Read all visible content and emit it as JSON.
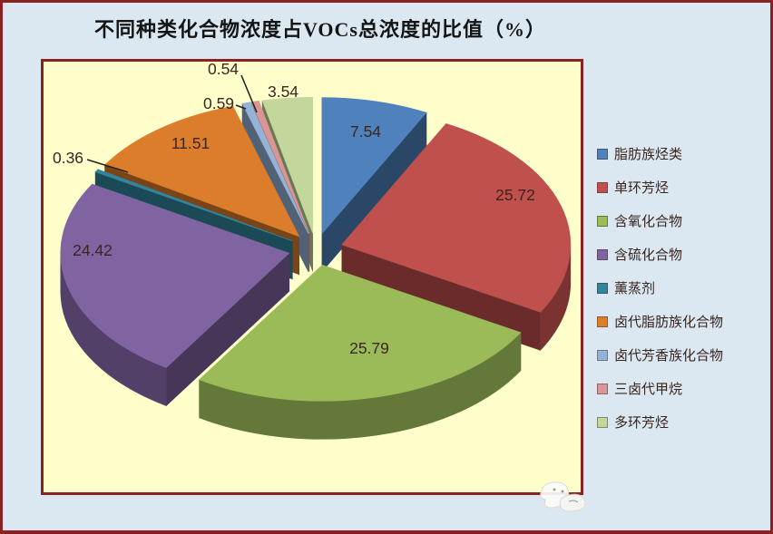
{
  "title": "不同种类化合物浓度占VOCs总浓度的比值（%）",
  "colors": {
    "page_bg": "#dbe8f1",
    "plot_bg": "#ffffcc",
    "frame": "#8b2222",
    "label_text": "#3a2521",
    "legend_text": "#38251f",
    "leader_line": "#222222"
  },
  "chart_data": {
    "type": "pie",
    "style": "3d-exploded",
    "title": "不同种类化合物浓度占VOCs总浓度的比值（%）",
    "unit": "%",
    "legend_position": "right",
    "labels_format": "value, 2 decimals",
    "slices": [
      {
        "label": "脂肪族烃类",
        "value": 7.54,
        "color": "#4f81bd",
        "label_text": "7.54"
      },
      {
        "label": "单环芳烃",
        "value": 25.72,
        "color": "#c0504d",
        "label_text": "25.72"
      },
      {
        "label": "含氧化合物",
        "value": 25.79,
        "color": "#9bbb59",
        "label_text": "25.79"
      },
      {
        "label": "含硫化合物",
        "value": 24.42,
        "color": "#8064a2",
        "label_text": "24.42"
      },
      {
        "label": "薰蒸剂",
        "value": 0.36,
        "color": "#31859c",
        "label_text": "0.36"
      },
      {
        "label": "卤代脂肪族化合物",
        "value": 11.51,
        "color": "#dc7d2b",
        "label_text": "11.51"
      },
      {
        "label": "卤代芳香族化合物",
        "value": 0.59,
        "color": "#95b3d7",
        "label_text": "0.59"
      },
      {
        "label": "三卤代甲烷",
        "value": 0.54,
        "color": "#d99694",
        "label_text": "0.54"
      },
      {
        "label": "多环芳烃",
        "value": 3.54,
        "color": "#c3d69b",
        "label_text": "3.54"
      }
    ]
  }
}
